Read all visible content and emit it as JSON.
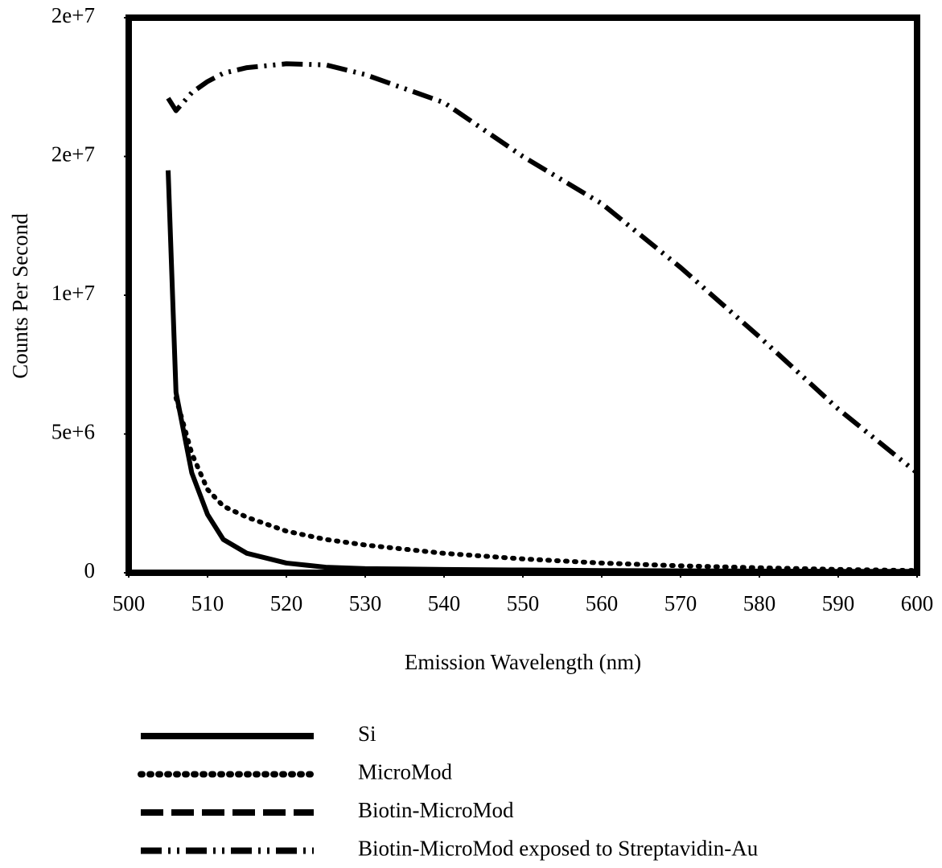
{
  "chart_data": {
    "type": "line",
    "xlabel": "Emission Wavelength (nm)",
    "ylabel": "Counts Per Second",
    "x": [
      505,
      506,
      508,
      510,
      512,
      515,
      520,
      525,
      530,
      540,
      550,
      560,
      570,
      580,
      590,
      600
    ],
    "series": [
      {
        "name": "Si",
        "color": "#000000",
        "dash": "solid",
        "values": [
          14500000,
          6500000,
          3600000,
          2100000,
          1200000,
          700000,
          350000,
          200000,
          150000,
          120000,
          100000,
          80000,
          70000,
          60000,
          50000,
          50000
        ]
      },
      {
        "name": "MicroMod",
        "color": "#000000",
        "dash": "dotted",
        "values": [
          null,
          6300000,
          4300000,
          3000000,
          2400000,
          2000000,
          1500000,
          1200000,
          1000000,
          700000,
          500000,
          350000,
          250000,
          180000,
          120000,
          80000
        ]
      },
      {
        "name": "Biotin-MicroMod",
        "color": "#000000",
        "dash": "dashed",
        "values": [
          0,
          0,
          0,
          0,
          0,
          0,
          0,
          0,
          0,
          0,
          0,
          0,
          0,
          0,
          0,
          0
        ]
      },
      {
        "name": "Biotin-MicroMod exposed to Streptavidin-Au",
        "color": "#000000",
        "dash": "dashdot",
        "values": [
          17100000,
          16650000,
          17300000,
          17700000,
          18000000,
          18200000,
          18340000,
          18300000,
          17950000,
          16940000,
          15000000,
          13300000,
          11000000,
          8500000,
          5900000,
          3600000
        ]
      }
    ],
    "xlim": [
      500,
      600
    ],
    "xticks": [
      500,
      510,
      520,
      530,
      540,
      550,
      560,
      570,
      580,
      590,
      600
    ],
    "ylim": [
      0,
      20000000
    ],
    "yticks": [
      0,
      {
        "value": 5000000,
        "label": "5e+6"
      },
      {
        "value": 10000000,
        "label": "1e+7"
      },
      {
        "value": 15000000,
        "label": "2e+7"
      },
      {
        "value": 20000000,
        "label": "2e+7"
      }
    ],
    "legend": "bottom"
  }
}
